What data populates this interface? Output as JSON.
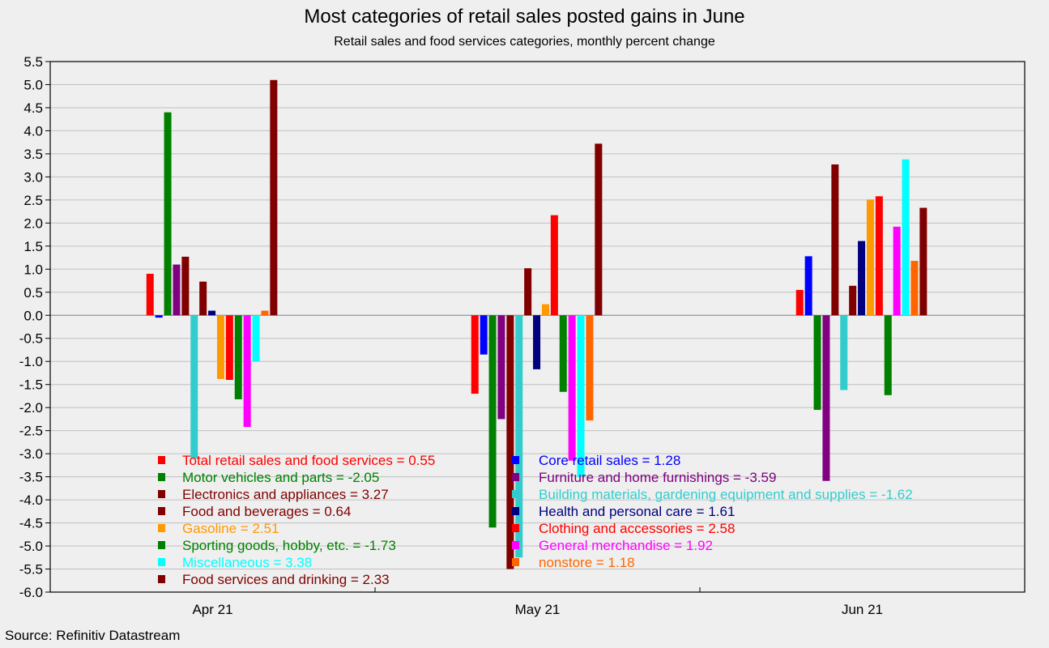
{
  "chart_data": {
    "type": "bar",
    "title": "Most categories of retail sales posted gains in June",
    "subtitle": "Retail sales and food services categories, monthly percent change",
    "source": "Source: Refinitiv Datastream",
    "categories": [
      "Apr 21",
      "May 21",
      "Jun 21"
    ],
    "ylim": [
      -6.0,
      5.5
    ],
    "yticks": [
      "5.5",
      "5.0",
      "4.5",
      "4.0",
      "3.5",
      "3.0",
      "2.5",
      "2.0",
      "1.5",
      "1.0",
      "0.5",
      "0.0",
      "-0.5",
      "-1.0",
      "-1.5",
      "-2.0",
      "-2.5",
      "-3.0",
      "-3.5",
      "-4.0",
      "-4.5",
      "-5.0",
      "-5.5",
      "-6.0"
    ],
    "grid": true,
    "legend_position": "bottom-left",
    "series": [
      {
        "name": "Total retail sales and food services",
        "color": "#ff0000",
        "values": [
          0.9,
          -1.7,
          0.55
        ]
      },
      {
        "name": "Core retail sales",
        "color": "#0000ff",
        "values": [
          -0.05,
          -0.85,
          1.28
        ]
      },
      {
        "name": "Motor vehicles and parts",
        "color": "#008000",
        "values": [
          4.4,
          -4.6,
          -2.05
        ]
      },
      {
        "name": "Furniture and home furnishings",
        "color": "#800080",
        "values": [
          1.1,
          -2.25,
          -3.59
        ]
      },
      {
        "name": "Electronics and appliances",
        "color": "#800000",
        "values": [
          1.27,
          -5.5,
          3.27
        ]
      },
      {
        "name": "Building materials, gardening equipment and supplies",
        "color": "#33cccc",
        "values": [
          -3.1,
          -5.25,
          -1.62
        ]
      },
      {
        "name": "Food and beverages",
        "color": "#800000",
        "values": [
          0.73,
          1.02,
          0.64
        ]
      },
      {
        "name": "Health and personal care",
        "color": "#000080",
        "values": [
          0.1,
          -1.17,
          1.61
        ]
      },
      {
        "name": "Gasoline",
        "color": "#ff9900",
        "values": [
          -1.38,
          0.24,
          2.51
        ]
      },
      {
        "name": "Clothing and accessories",
        "color": "#ff0000",
        "values": [
          -1.4,
          2.17,
          2.58
        ]
      },
      {
        "name": "Sporting goods, hobby, etc.",
        "color": "#008000",
        "values": [
          -1.82,
          -1.66,
          -1.73
        ]
      },
      {
        "name": "General merchandise",
        "color": "#ff00ff",
        "values": [
          -2.42,
          -3.15,
          1.92
        ]
      },
      {
        "name": "Miscellaneous",
        "color": "#00ffff",
        "values": [
          -1.0,
          -3.5,
          3.38
        ]
      },
      {
        "name": "nonstore",
        "color": "#ff6600",
        "values": [
          0.1,
          -2.28,
          1.18
        ]
      },
      {
        "name": "Food services and drinking",
        "color": "#800000",
        "values": [
          5.1,
          3.72,
          2.33
        ]
      }
    ],
    "legend_left": [
      {
        "label": "Total retail sales and food services = 0.55",
        "color": "#ff0000"
      },
      {
        "label": "Motor vehicles and parts = -2.05",
        "color": "#008000"
      },
      {
        "label": "Electronics and appliances = 3.27",
        "color": "#800000"
      },
      {
        "label": "Food and beverages = 0.64",
        "color": "#800000"
      },
      {
        "label": "Gasoline = 2.51",
        "color": "#ff9900"
      },
      {
        "label": "Sporting goods, hobby, etc. = -1.73",
        "color": "#008000"
      },
      {
        "label": "Miscellaneous = 3.38",
        "color": "#00ffff"
      },
      {
        "label": "Food services and drinking = 2.33",
        "color": "#800000"
      }
    ],
    "legend_right": [
      {
        "label": "Core retail sales  = 1.28",
        "color": "#0000ff"
      },
      {
        "label": "Furniture and home furnishings = -3.59",
        "color": "#800080"
      },
      {
        "label": "Building materials, gardening equipment and supplies = -1.62",
        "color": "#33cccc"
      },
      {
        "label": "Health and personal care = 1.61",
        "color": "#000080"
      },
      {
        "label": "Clothing and accessories = 2.58",
        "color": "#ff0000"
      },
      {
        "label": "General merchandise = 1.92",
        "color": "#ff00ff"
      },
      {
        "label": "nonstore = 1.18",
        "color": "#ff6600"
      }
    ]
  }
}
